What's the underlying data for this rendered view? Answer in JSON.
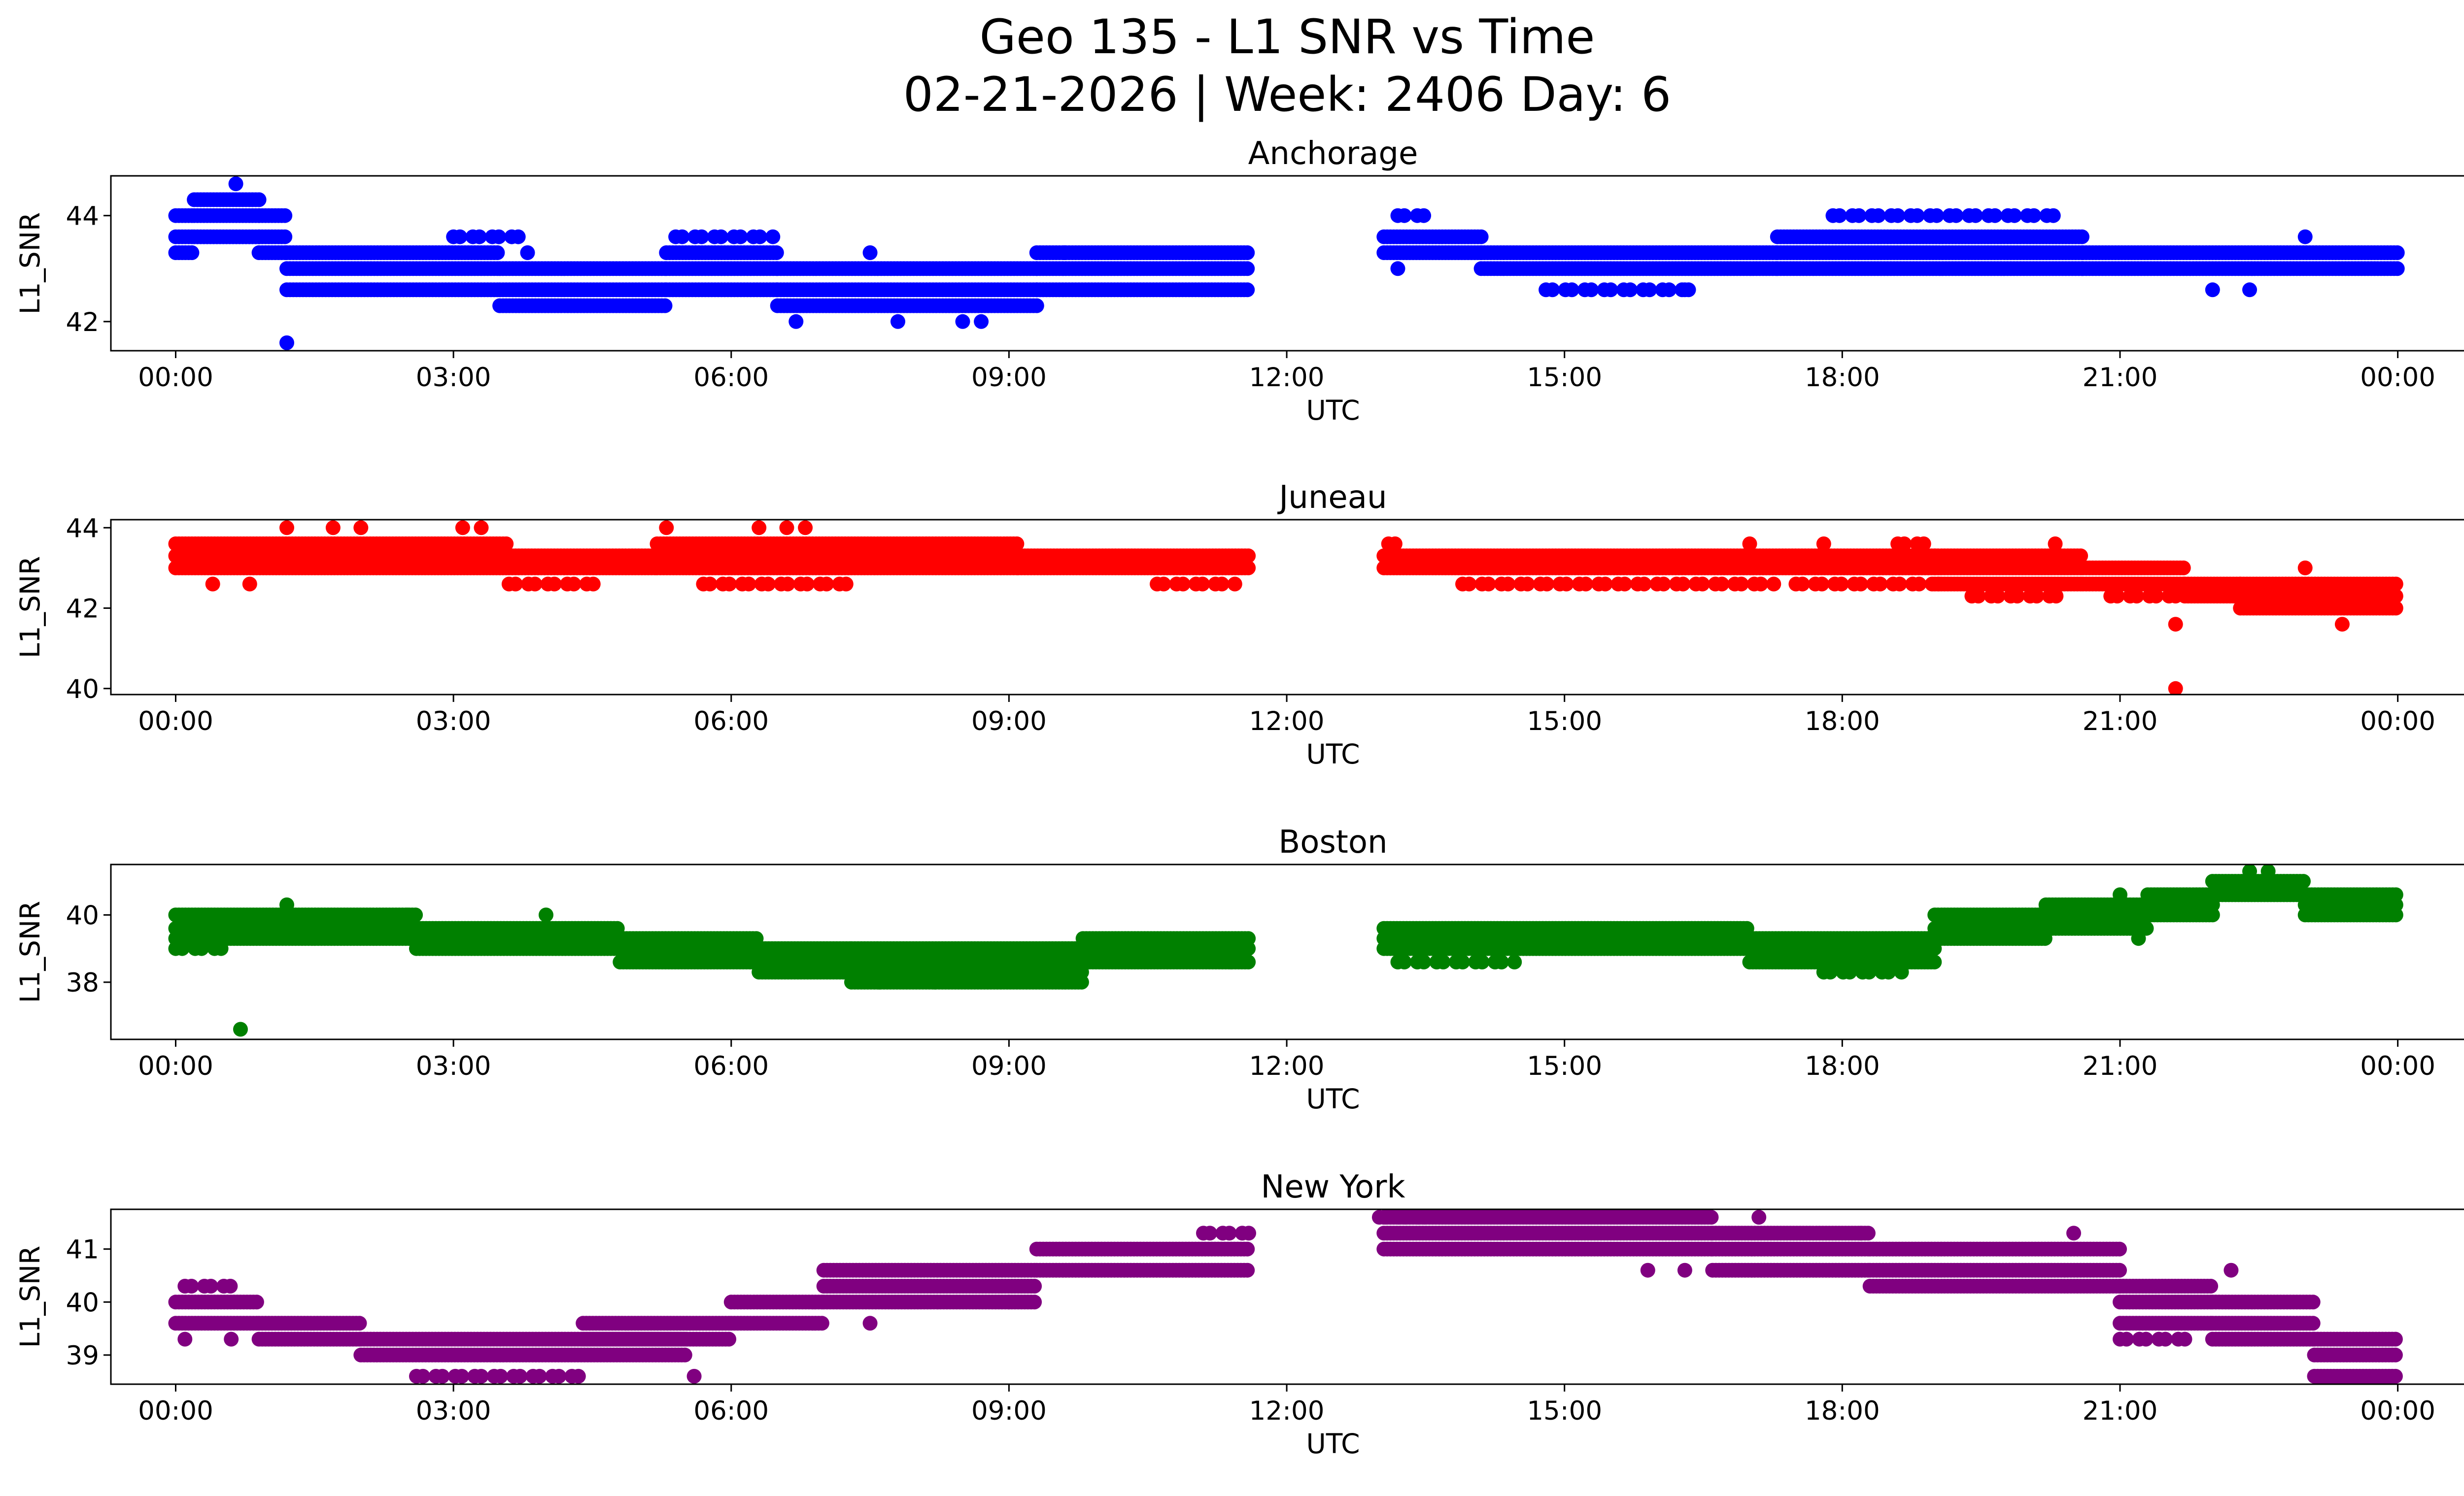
{
  "title_line1": "Geo 135 - L1 SNR vs Time",
  "title_line2": "02-21-2026 | Week: 2406 Day: 6",
  "chart_data": [
    {
      "type": "scatter",
      "title": "Anchorage",
      "xlabel": "UTC",
      "ylabel": "L1_SNR",
      "color": "#0000ff",
      "xlim": [
        -0.7,
        25.7
      ],
      "ylim": [
        41.45,
        44.75
      ],
      "xticks": [
        0,
        3,
        6,
        9,
        12,
        15,
        18,
        21,
        24
      ],
      "xticklabels": [
        "00:00",
        "03:00",
        "06:00",
        "09:00",
        "12:00",
        "15:00",
        "18:00",
        "21:00",
        "00:00"
      ],
      "yticks": [
        42,
        44
      ],
      "yticklabels": [
        "42",
        "44"
      ],
      "segments": [
        {
          "t0": 0.0,
          "t1": 0.2,
          "levels": [
            43.3,
            43.6,
            44.0
          ]
        },
        {
          "t0": 0.2,
          "t1": 0.9,
          "levels": [
            43.6,
            44.0,
            44.3
          ]
        },
        {
          "t0": 0.9,
          "t1": 1.2,
          "levels": [
            43.3,
            43.6,
            44.0
          ]
        },
        {
          "t0": 1.2,
          "t1": 3.5,
          "levels": [
            42.6,
            43.0,
            43.3
          ]
        },
        {
          "t0": 3.5,
          "t1": 5.3,
          "levels": [
            42.3,
            42.6,
            43.0
          ]
        },
        {
          "t0": 5.3,
          "t1": 6.5,
          "levels": [
            42.6,
            43.0,
            43.3
          ]
        },
        {
          "t0": 6.5,
          "t1": 9.3,
          "levels": [
            42.3,
            42.6,
            43.0
          ]
        },
        {
          "t0": 9.3,
          "t1": 11.6,
          "levels": [
            42.6,
            43.0,
            43.3
          ]
        },
        {
          "t0": 13.05,
          "t1": 14.1,
          "levels": [
            43.3,
            43.6
          ]
        },
        {
          "t0": 14.1,
          "t1": 17.3,
          "levels": [
            43.0,
            43.3
          ]
        },
        {
          "t0": 17.3,
          "t1": 20.6,
          "levels": [
            43.0,
            43.3,
            43.6
          ]
        },
        {
          "t0": 20.6,
          "t1": 24.0,
          "levels": [
            43.0,
            43.3
          ]
        }
      ],
      "sparse_levels": [
        {
          "t0": 13.2,
          "t1": 13.6,
          "v": 44.0
        },
        {
          "t0": 17.9,
          "t1": 20.4,
          "v": 44.0
        },
        {
          "t0": 14.8,
          "t1": 16.4,
          "v": 42.6
        },
        {
          "t0": 3.0,
          "t1": 3.7,
          "v": 43.6
        },
        {
          "t0": 5.4,
          "t1": 6.5,
          "v": 43.6
        }
      ],
      "outliers": [
        [
          0.65,
          44.6
        ],
        [
          1.2,
          41.6
        ],
        [
          6.7,
          42.0
        ],
        [
          7.8,
          42.0
        ],
        [
          8.5,
          42.0
        ],
        [
          8.7,
          42.0
        ],
        [
          3.8,
          43.3
        ],
        [
          7.5,
          43.3
        ],
        [
          9.6,
          43.3
        ],
        [
          22.4,
          42.6
        ],
        [
          22.0,
          42.6
        ],
        [
          16.3,
          42.6
        ],
        [
          13.2,
          43.0
        ],
        [
          23.0,
          43.6
        ]
      ]
    },
    {
      "type": "scatter",
      "title": "Juneau",
      "xlabel": "UTC",
      "ylabel": "L1_SNR",
      "color": "#ff0000",
      "xlim": [
        -0.7,
        25.7
      ],
      "ylim": [
        39.85,
        44.2
      ],
      "xticks": [
        0,
        3,
        6,
        9,
        12,
        15,
        18,
        21,
        24
      ],
      "xticklabels": [
        "00:00",
        "03:00",
        "06:00",
        "09:00",
        "12:00",
        "15:00",
        "18:00",
        "21:00",
        "00:00"
      ],
      "yticks": [
        40,
        42,
        44
      ],
      "yticklabels": [
        "40",
        "42",
        "44"
      ],
      "segments": [
        {
          "t0": 0.0,
          "t1": 3.6,
          "levels": [
            43.0,
            43.3,
            43.6
          ]
        },
        {
          "t0": 3.6,
          "t1": 5.2,
          "levels": [
            43.0,
            43.3
          ]
        },
        {
          "t0": 5.2,
          "t1": 9.1,
          "levels": [
            43.0,
            43.3,
            43.6
          ]
        },
        {
          "t0": 9.1,
          "t1": 11.6,
          "levels": [
            43.0,
            43.3
          ]
        },
        {
          "t0": 13.05,
          "t1": 19.0,
          "levels": [
            43.0,
            43.3
          ]
        },
        {
          "t0": 19.0,
          "t1": 20.6,
          "levels": [
            42.6,
            43.0,
            43.3
          ]
        },
        {
          "t0": 20.6,
          "t1": 21.7,
          "levels": [
            42.6,
            43.0
          ]
        },
        {
          "t0": 21.7,
          "t1": 22.3,
          "levels": [
            42.3,
            42.6
          ]
        },
        {
          "t0": 22.3,
          "t1": 24.0,
          "levels": [
            42.0,
            42.3,
            42.6
          ]
        }
      ],
      "sparse_levels": [
        {
          "t0": 3.6,
          "t1": 4.6,
          "v": 42.6
        },
        {
          "t0": 5.7,
          "t1": 7.3,
          "v": 42.6
        },
        {
          "t0": 10.6,
          "t1": 11.5,
          "v": 42.6
        },
        {
          "t0": 13.9,
          "t1": 17.3,
          "v": 42.6
        },
        {
          "t0": 17.5,
          "t1": 19.1,
          "v": 42.6
        },
        {
          "t0": 19.4,
          "t1": 20.4,
          "v": 42.3
        },
        {
          "t0": 20.9,
          "t1": 21.6,
          "v": 42.3
        },
        {
          "t0": 13.1,
          "t1": 13.3,
          "v": 43.6
        },
        {
          "t0": 18.6,
          "t1": 18.9,
          "v": 43.6
        }
      ],
      "outliers": [
        [
          1.2,
          44.0
        ],
        [
          1.7,
          44.0
        ],
        [
          2.0,
          44.0
        ],
        [
          3.1,
          44.0
        ],
        [
          3.3,
          44.0
        ],
        [
          5.3,
          44.0
        ],
        [
          6.3,
          44.0
        ],
        [
          6.6,
          44.0
        ],
        [
          6.8,
          44.0
        ],
        [
          0.4,
          42.6
        ],
        [
          0.8,
          42.6
        ],
        [
          21.6,
          41.6
        ],
        [
          21.6,
          40.0
        ],
        [
          23.4,
          41.6
        ],
        [
          23.0,
          43.0
        ],
        [
          17.0,
          43.6
        ],
        [
          17.8,
          43.6
        ],
        [
          20.3,
          43.6
        ]
      ]
    },
    {
      "type": "scatter",
      "title": "Boston",
      "xlabel": "UTC",
      "ylabel": "L1_SNR",
      "color": "#008000",
      "xlim": [
        -0.7,
        25.7
      ],
      "ylim": [
        36.3,
        41.5
      ],
      "xticks": [
        0,
        3,
        6,
        9,
        12,
        15,
        18,
        21,
        24
      ],
      "xticklabels": [
        "00:00",
        "03:00",
        "06:00",
        "09:00",
        "12:00",
        "15:00",
        "18:00",
        "21:00",
        "00:00"
      ],
      "yticks": [
        38,
        40
      ],
      "yticklabels": [
        "38",
        "40"
      ],
      "segments": [
        {
          "t0": 0.0,
          "t1": 2.6,
          "levels": [
            39.3,
            39.6,
            40.0
          ]
        },
        {
          "t0": 2.6,
          "t1": 4.8,
          "levels": [
            39.0,
            39.3,
            39.6
          ]
        },
        {
          "t0": 4.8,
          "t1": 6.3,
          "levels": [
            38.6,
            39.0,
            39.3
          ]
        },
        {
          "t0": 6.3,
          "t1": 7.3,
          "levels": [
            38.3,
            38.6,
            39.0
          ]
        },
        {
          "t0": 7.3,
          "t1": 9.8,
          "levels": [
            38.0,
            38.3,
            38.6,
            39.0
          ]
        },
        {
          "t0": 9.8,
          "t1": 11.6,
          "levels": [
            38.6,
            39.0,
            39.3
          ]
        },
        {
          "t0": 13.05,
          "t1": 17.0,
          "levels": [
            39.0,
            39.3,
            39.6
          ]
        },
        {
          "t0": 17.0,
          "t1": 19.0,
          "levels": [
            38.6,
            39.0,
            39.3
          ]
        },
        {
          "t0": 19.0,
          "t1": 20.2,
          "levels": [
            39.3,
            39.6,
            40.0
          ]
        },
        {
          "t0": 20.2,
          "t1": 21.3,
          "levels": [
            39.6,
            40.0,
            40.3
          ]
        },
        {
          "t0": 21.3,
          "t1": 22.0,
          "levels": [
            40.0,
            40.3,
            40.6
          ]
        },
        {
          "t0": 22.0,
          "t1": 23.0,
          "levels": [
            40.6,
            41.0
          ]
        },
        {
          "t0": 23.0,
          "t1": 24.0,
          "levels": [
            40.0,
            40.3,
            40.6
          ]
        }
      ],
      "sparse_levels": [
        {
          "t0": 0.0,
          "t1": 0.6,
          "v": 39.0
        },
        {
          "t0": 17.8,
          "t1": 18.7,
          "v": 38.3
        },
        {
          "t0": 13.2,
          "t1": 14.5,
          "v": 38.6
        }
      ],
      "outliers": [
        [
          0.7,
          36.6
        ],
        [
          1.2,
          40.3
        ],
        [
          2.5,
          40.0
        ],
        [
          4.0,
          40.0
        ],
        [
          21.2,
          39.3
        ],
        [
          22.4,
          41.3
        ],
        [
          22.6,
          41.3
        ],
        [
          21.0,
          40.6
        ],
        [
          11.4,
          38.6
        ],
        [
          7.6,
          38.0
        ],
        [
          8.2,
          38.0
        ]
      ]
    },
    {
      "type": "scatter",
      "title": "New York",
      "xlabel": "UTC",
      "ylabel": "L1_SNR",
      "color": "#800080",
      "xlim": [
        -0.7,
        25.7
      ],
      "ylim": [
        38.45,
        41.75
      ],
      "xticks": [
        0,
        3,
        6,
        9,
        12,
        15,
        18,
        21,
        24
      ],
      "xticklabels": [
        "00:00",
        "03:00",
        "06:00",
        "09:00",
        "12:00",
        "15:00",
        "18:00",
        "21:00",
        "00:00"
      ],
      "yticks": [
        39,
        40,
        41
      ],
      "yticklabels": [
        "39",
        "40",
        "41"
      ],
      "segments": [
        {
          "t0": 0.0,
          "t1": 0.9,
          "levels": [
            39.6,
            40.0
          ]
        },
        {
          "t0": 0.9,
          "t1": 2.0,
          "levels": [
            39.3,
            39.6
          ]
        },
        {
          "t0": 2.0,
          "t1": 5.5,
          "levels": [
            39.0,
            39.3
          ]
        },
        {
          "t0": 4.4,
          "t1": 6.0,
          "levels": [
            39.3,
            39.6
          ]
        },
        {
          "t0": 6.0,
          "t1": 7.0,
          "levels": [
            39.6,
            40.0
          ]
        },
        {
          "t0": 7.0,
          "t1": 9.3,
          "levels": [
            40.0,
            40.3,
            40.6
          ]
        },
        {
          "t0": 9.3,
          "t1": 11.6,
          "levels": [
            40.6,
            41.0
          ]
        },
        {
          "t0": 13.05,
          "t1": 16.6,
          "levels": [
            41.0,
            41.3,
            41.6
          ]
        },
        {
          "t0": 16.6,
          "t1": 18.3,
          "levels": [
            40.6,
            41.0,
            41.3
          ]
        },
        {
          "t0": 18.3,
          "t1": 21.0,
          "levels": [
            40.3,
            40.6,
            41.0
          ]
        },
        {
          "t0": 21.0,
          "t1": 22.0,
          "levels": [
            39.6,
            40.0,
            40.3
          ]
        },
        {
          "t0": 22.0,
          "t1": 23.1,
          "levels": [
            39.3,
            39.6,
            40.0
          ]
        },
        {
          "t0": 23.1,
          "t1": 24.0,
          "levels": [
            38.6,
            39.0,
            39.3
          ]
        }
      ],
      "sparse_levels": [
        {
          "t0": 2.6,
          "t1": 4.4,
          "v": 38.6
        },
        {
          "t0": 0.1,
          "t1": 0.6,
          "v": 40.3
        },
        {
          "t0": 11.1,
          "t1": 11.6,
          "v": 41.3
        },
        {
          "t0": 13.0,
          "t1": 13.5,
          "v": 41.6
        },
        {
          "t0": 21.0,
          "t1": 21.7,
          "v": 39.3
        }
      ],
      "outliers": [
        [
          0.1,
          39.3
        ],
        [
          0.6,
          39.3
        ],
        [
          5.6,
          38.6
        ],
        [
          7.5,
          39.6
        ],
        [
          15.9,
          40.6
        ],
        [
          16.3,
          40.6
        ],
        [
          17.1,
          41.6
        ],
        [
          18.2,
          41.3
        ],
        [
          20.5,
          41.3
        ],
        [
          22.2,
          40.6
        ],
        [
          9.0,
          40.0
        ]
      ]
    }
  ]
}
